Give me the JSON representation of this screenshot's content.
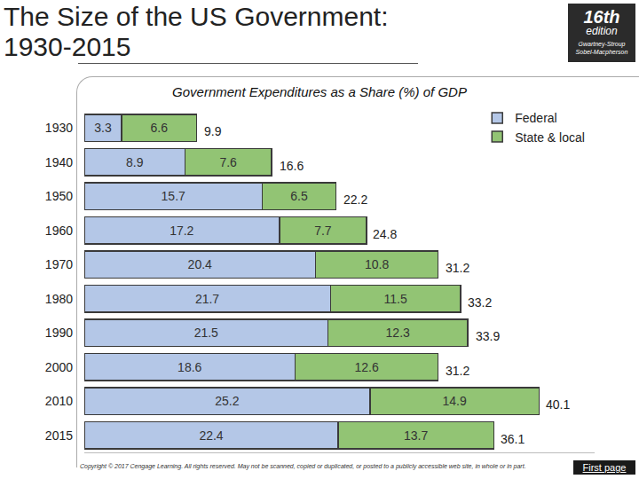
{
  "header": {
    "title": "The Size of the US Government: 1930-2015",
    "badge": {
      "edition_number": "16th",
      "edition_label": "edition",
      "authors": [
        "Gwartney-Stroup",
        "Sobel-Macpherson"
      ]
    }
  },
  "chart_data": {
    "type": "bar",
    "orientation": "horizontal",
    "stacked": true,
    "title": "Government Expenditures as a Share (%) of GDP",
    "categories": [
      "1930",
      "1940",
      "1950",
      "1960",
      "1970",
      "1980",
      "1990",
      "2000",
      "2010",
      "2015"
    ],
    "series": [
      {
        "name": "Federal",
        "color": "#b4c7e7",
        "values": [
          3.3,
          8.9,
          15.7,
          17.2,
          20.4,
          21.7,
          21.5,
          18.6,
          25.2,
          22.4
        ]
      },
      {
        "name": "State & local",
        "color": "#92c474",
        "values": [
          6.6,
          7.6,
          6.5,
          7.7,
          10.8,
          11.5,
          12.3,
          12.6,
          14.9,
          13.7
        ]
      }
    ],
    "totals": [
      9.9,
      16.6,
      22.2,
      24.8,
      31.2,
      33.2,
      33.9,
      31.2,
      40.1,
      36.1
    ],
    "xlim": [
      0,
      45
    ],
    "data_labels": true,
    "legend": "upper right",
    "tick_labels": "y",
    "grid": false
  },
  "footer": {
    "copyright": "Copyright © 2017 Cengage Learning. All rights reserved. May not be scanned, copied or duplicated, or posted to a publicly accessible web site, in whole or in part.",
    "button": "First page"
  }
}
